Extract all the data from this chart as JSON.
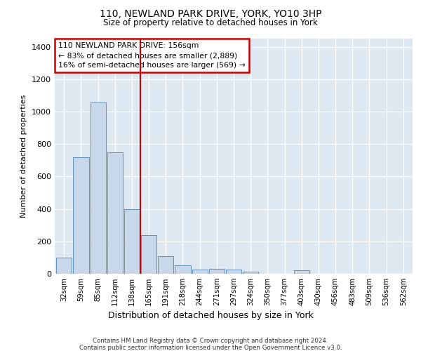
{
  "title_line1": "110, NEWLAND PARK DRIVE, YORK, YO10 3HP",
  "title_line2": "Size of property relative to detached houses in York",
  "xlabel": "Distribution of detached houses by size in York",
  "ylabel": "Number of detached properties",
  "bar_labels": [
    "32sqm",
    "59sqm",
    "85sqm",
    "112sqm",
    "138sqm",
    "165sqm",
    "191sqm",
    "218sqm",
    "244sqm",
    "271sqm",
    "297sqm",
    "324sqm",
    "350sqm",
    "377sqm",
    "403sqm",
    "430sqm",
    "456sqm",
    "483sqm",
    "509sqm",
    "536sqm",
    "562sqm"
  ],
  "bar_values": [
    100,
    720,
    1055,
    750,
    400,
    240,
    110,
    50,
    25,
    30,
    25,
    15,
    0,
    0,
    20,
    0,
    0,
    0,
    0,
    0,
    0
  ],
  "bar_color": "#c8d8ea",
  "bar_edge_color": "#6090b8",
  "vline_color": "#cc0000",
  "vline_pos": 4.5,
  "annotation_line1": "110 NEWLAND PARK DRIVE: 156sqm",
  "annotation_line2": "← 83% of detached houses are smaller (2,889)",
  "annotation_line3": "16% of semi-detached houses are larger (569) →",
  "annotation_box_color": "#cc0000",
  "ylim": [
    0,
    1450
  ],
  "yticks": [
    0,
    200,
    400,
    600,
    800,
    1000,
    1200,
    1400
  ],
  "footer_line1": "Contains HM Land Registry data © Crown copyright and database right 2024.",
  "footer_line2": "Contains public sector information licensed under the Open Government Licence v3.0.",
  "plot_bg_color": "#dde8f0"
}
